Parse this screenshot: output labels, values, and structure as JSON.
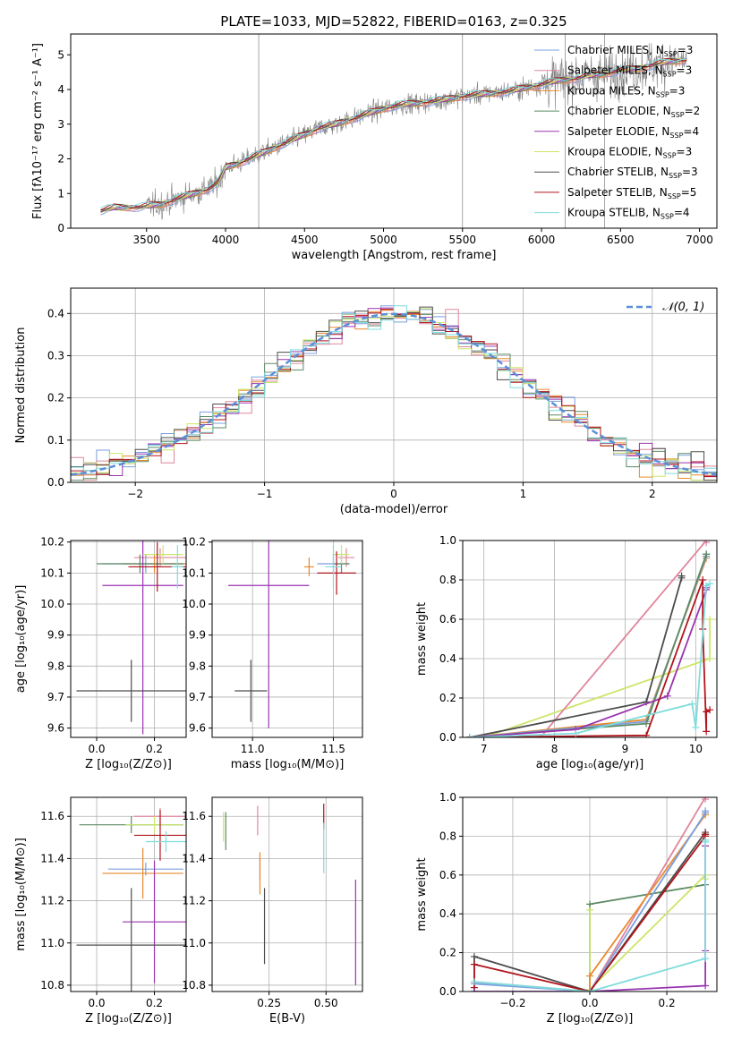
{
  "title": "PLATE=1033, MJD=52822, FIBERID=0163, z=0.325",
  "colors": {
    "Chabrier MILES": "#7b9fe0",
    "Salpeter MILES": "#e0869c",
    "Kroupa MILES": "#e88a2e",
    "Chabrier ELODIE": "#5e8a64",
    "Salpeter ELODIE": "#9a34b0",
    "Kroupa ELODIE": "#cce66a",
    "Chabrier STELIB": "#4d4d4d",
    "Salpeter STELIB": "#b0151c",
    "Kroupa STELIB": "#7fdcdc",
    "data": "#808080",
    "normal": "#5b8fd8"
  },
  "chart_data": [
    {
      "type": "line",
      "id": "spectrum",
      "xlabel": "wavelength [Angstrom, rest frame]",
      "ylabel": "Flux [fλ10⁻¹⁷ erg cm⁻² s⁻¹ A⁻¹]",
      "xlim": [
        3020,
        7110
      ],
      "ylim": [
        0,
        5.6
      ],
      "xticks": [
        3500,
        4000,
        4500,
        5000,
        5500,
        6000,
        6500,
        7000
      ],
      "yticks": [
        0,
        1,
        2,
        3,
        4,
        5
      ],
      "legend_position": "top-right",
      "continuum": {
        "x": [
          3210,
          3300,
          3450,
          3600,
          3700,
          3800,
          3900,
          3950,
          4000,
          4100,
          4200,
          4300,
          4400,
          4500,
          4600,
          4700,
          4800,
          4900,
          5000,
          5100,
          5200,
          5300,
          5400,
          5500,
          5600,
          5700,
          5800,
          5900,
          6000,
          6100,
          6200,
          6300,
          6400,
          6500,
          6600,
          6700,
          6800,
          6920
        ],
        "y": [
          0.5,
          0.6,
          0.6,
          0.7,
          0.85,
          1.0,
          1.15,
          1.3,
          1.75,
          1.9,
          2.1,
          2.3,
          2.5,
          2.7,
          2.9,
          3.0,
          3.15,
          3.3,
          3.45,
          3.55,
          3.6,
          3.65,
          3.72,
          3.8,
          3.85,
          3.9,
          3.95,
          4.05,
          4.15,
          4.25,
          4.3,
          4.4,
          4.45,
          4.55,
          4.6,
          4.7,
          4.8,
          4.85
        ]
      },
      "series": [
        {
          "name": "Chabrier MILES, N",
          "sub": "SSP",
          "suffix": "=3"
        },
        {
          "name": "Salpeter MILES, N",
          "sub": "SSP",
          "suffix": "=3"
        },
        {
          "name": "Kroupa MILES, N",
          "sub": "SSP",
          "suffix": "=3"
        },
        {
          "name": "Chabrier ELODIE, N",
          "sub": "SSP",
          "suffix": "=2"
        },
        {
          "name": "Salpeter ELODIE, N",
          "sub": "SSP",
          "suffix": "=4"
        },
        {
          "name": "Kroupa ELODIE, N",
          "sub": "SSP",
          "suffix": "=3"
        },
        {
          "name": "Chabrier STELIB, N",
          "sub": "SSP",
          "suffix": "=3"
        },
        {
          "name": "Salpeter STELIB, N",
          "sub": "SSP",
          "suffix": "=5"
        },
        {
          "name": "Kroupa STELIB, N",
          "sub": "SSP",
          "suffix": "=4"
        }
      ]
    },
    {
      "type": "line",
      "id": "residuals",
      "xlabel": "(data-model)/error",
      "ylabel": "Normed distribution",
      "xlim": [
        -2.5,
        2.5
      ],
      "ylim": [
        0,
        0.46
      ],
      "xticks": [
        -2,
        -1,
        0,
        1,
        2
      ],
      "yticks": [
        0.0,
        0.1,
        0.2,
        0.3,
        0.4
      ],
      "grid": true,
      "legend_position": "top-right",
      "normal_label": "𝒩(0, 1)",
      "bin_width": 0.1
    },
    {
      "type": "scatter",
      "id": "age_vs_Z",
      "xlabel": "Z [log₁₀(Z/Z⊙)]",
      "ylabel": "age  [log₁₀(age/yr)]",
      "xlim": [
        -0.09,
        0.31
      ],
      "ylim": [
        9.57,
        10.205
      ],
      "xticks": [
        0.0,
        0.2
      ],
      "yticks": [
        9.6,
        9.7,
        9.8,
        9.9,
        10.0,
        10.1,
        10.2
      ],
      "grid": true,
      "points": [
        {
          "series": "Chabrier MILES",
          "x": 0.17,
          "xerr": 0.15,
          "y": 10.13,
          "yerr": 0.03
        },
        {
          "series": "Salpeter MILES",
          "x": 0.22,
          "xerr": 0.09,
          "y": 10.15,
          "yerr": 0.03
        },
        {
          "series": "Kroupa MILES",
          "x": 0.2,
          "xerr": 0.11,
          "y": 10.13,
          "yerr": 0.03
        },
        {
          "series": "Chabrier ELODIE",
          "x": 0.15,
          "xerr": 0.15,
          "y": 10.13,
          "yerr": 0.03
        },
        {
          "series": "Salpeter ELODIE",
          "x": 0.16,
          "xerr": 0.14,
          "y": 10.06,
          "yerr": 0.48
        },
        {
          "series": "Kroupa ELODIE",
          "x": 0.23,
          "xerr": 0.07,
          "y": 10.16,
          "yerr": 0.03
        },
        {
          "series": "Chabrier STELIB",
          "x": 0.12,
          "xerr": 0.19,
          "y": 9.72,
          "yerr": 0.1
        },
        {
          "series": "Salpeter STELIB",
          "x": 0.21,
          "xerr": 0.1,
          "y": 10.12,
          "yerr": 0.08
        },
        {
          "series": "Kroupa STELIB",
          "x": 0.28,
          "xerr": 0.02,
          "y": 10.12,
          "yerr": 0.07
        }
      ]
    },
    {
      "type": "scatter",
      "id": "age_vs_mass",
      "xlabel": "mass [log₁₀(M/M⊙)]",
      "xlim": [
        10.75,
        11.68
      ],
      "ylim": [
        9.57,
        10.205
      ],
      "xticks": [
        11.0,
        11.5
      ],
      "yticks": [
        9.6,
        9.7,
        9.8,
        9.9,
        10.0,
        10.1,
        10.2
      ],
      "grid": true,
      "points": [
        {
          "series": "Chabrier MILES",
          "x": 11.5,
          "xerr": 0.1,
          "y": 10.13,
          "yerr": 0.03
        },
        {
          "series": "Salpeter MILES",
          "x": 11.58,
          "xerr": 0.05,
          "y": 10.15,
          "yerr": 0.03
        },
        {
          "series": "Kroupa MILES",
          "x": 11.35,
          "xerr": 0.03,
          "y": 10.12,
          "yerr": 0.03
        },
        {
          "series": "Chabrier ELODIE",
          "x": 11.55,
          "xerr": 0.05,
          "y": 10.13,
          "yerr": 0.03
        },
        {
          "series": "Salpeter ELODIE",
          "x": 11.1,
          "xerr": 0.25,
          "y": 10.06,
          "yerr": 0.46
        },
        {
          "series": "Kroupa ELODIE",
          "x": 11.55,
          "xerr": 0.05,
          "y": 10.16,
          "yerr": 0.03
        },
        {
          "series": "Chabrier STELIB",
          "x": 10.99,
          "xerr": 0.1,
          "y": 9.72,
          "yerr": 0.1
        },
        {
          "series": "Salpeter STELIB",
          "x": 11.52,
          "xerr": 0.12,
          "y": 10.1,
          "yerr": 0.07
        },
        {
          "series": "Kroupa STELIB",
          "x": 11.5,
          "xerr": 0.05,
          "y": 10.12,
          "yerr": 0.07
        }
      ]
    },
    {
      "type": "line",
      "id": "mass_weight_vs_age",
      "xlabel": "age  [log₁₀(age/yr)]",
      "ylabel": "mass weight",
      "xlim": [
        6.7,
        10.3
      ],
      "ylim": [
        0,
        1.0
      ],
      "xticks": [
        7,
        8,
        9,
        10
      ],
      "yticks": [
        0.0,
        0.2,
        0.4,
        0.6,
        0.8,
        1.0
      ],
      "grid": true,
      "series": [
        {
          "series": "Kroupa ELODIE",
          "x": [
            7.0,
            10.2,
            10.2
          ],
          "y": [
            0.0,
            0.4,
            0.6
          ]
        },
        {
          "series": "Salpeter MILES",
          "x": [
            7.8,
            10.15,
            10.15
          ],
          "y": [
            0.0,
            1.0,
            0.99
          ]
        },
        {
          "series": "Chabrier STELIB",
          "x": [
            6.8,
            9.3,
            9.8,
            9.8
          ],
          "y": [
            0.0,
            0.18,
            0.81,
            0.82
          ]
        },
        {
          "series": "Kroupa MILES",
          "x": [
            6.8,
            9.3,
            10.15,
            10.15
          ],
          "y": [
            0.0,
            0.09,
            0.91,
            0.92
          ]
        },
        {
          "series": "Chabrier MILES",
          "x": [
            6.8,
            9.3,
            10.15,
            10.15
          ],
          "y": [
            0.0,
            0.08,
            0.92,
            0.93
          ]
        },
        {
          "series": "Chabrier ELODIE",
          "x": [
            6.8,
            9.3,
            10.15,
            10.15
          ],
          "y": [
            0.0,
            0.07,
            0.93,
            0.93
          ]
        },
        {
          "series": "Salpeter ELODIE",
          "x": [
            6.8,
            8.3,
            9.6,
            10.15,
            10.15
          ],
          "y": [
            0.0,
            0.04,
            0.21,
            0.75,
            0.76
          ]
        },
        {
          "series": "Salpeter STELIB",
          "x": [
            6.8,
            9.3,
            10.1,
            10.1,
            10.15,
            10.15,
            10.2
          ],
          "y": [
            0.0,
            0.01,
            0.8,
            0.55,
            0.03,
            0.13,
            0.14
          ]
        },
        {
          "series": "Kroupa STELIB",
          "x": [
            6.8,
            8.3,
            9.95,
            10.0,
            10.15,
            10.2
          ],
          "y": [
            0.0,
            0.02,
            0.17,
            0.05,
            0.77,
            0.78
          ]
        }
      ]
    },
    {
      "type": "scatter",
      "id": "mass_vs_Z",
      "xlabel": "Z [log₁₀(Z/Z⊙)]",
      "ylabel": "mass [log₁₀(M/M⊙)]",
      "xlim": [
        -0.09,
        0.31
      ],
      "ylim": [
        10.77,
        11.69
      ],
      "xticks": [
        0.0,
        0.2
      ],
      "yticks": [
        10.8,
        11.0,
        11.2,
        11.4,
        11.6
      ],
      "grid": true,
      "points": [
        {
          "series": "Chabrier MILES",
          "x": 0.17,
          "xerr": 0.13,
          "y": 11.35,
          "yerr": 0.03
        },
        {
          "series": "Salpeter MILES",
          "x": 0.22,
          "xerr": 0.09,
          "y": 11.6,
          "yerr": 0.04
        },
        {
          "series": "Kroupa MILES",
          "x": 0.16,
          "xerr": 0.14,
          "y": 11.33,
          "yerr": 0.12
        },
        {
          "series": "Chabrier ELODIE",
          "x": 0.12,
          "xerr": 0.18,
          "y": 11.56,
          "yerr": 0.04
        },
        {
          "series": "Salpeter ELODIE",
          "x": 0.2,
          "xerr": 0.11,
          "y": 11.1,
          "yerr": 0.29
        },
        {
          "series": "Kroupa ELODIE",
          "x": 0.2,
          "xerr": 0.1,
          "y": 11.56,
          "yerr": 0.04
        },
        {
          "series": "Chabrier STELIB",
          "x": 0.12,
          "xerr": 0.19,
          "y": 10.99,
          "yerr": 0.27
        },
        {
          "series": "Salpeter STELIB",
          "x": 0.22,
          "xerr": 0.09,
          "y": 11.51,
          "yerr": 0.12
        },
        {
          "series": "Kroupa STELIB",
          "x": 0.24,
          "xerr": 0.07,
          "y": 11.48,
          "yerr": 0.05
        }
      ]
    },
    {
      "type": "scatter",
      "id": "mass_vs_ebv",
      "xlabel": "E(B-V)",
      "xlim": [
        0.0,
        0.66
      ],
      "ylim": [
        10.77,
        11.69
      ],
      "xticks": [
        0.25,
        0.5
      ],
      "yticks": [
        10.8,
        11.0,
        11.2,
        11.4,
        11.6
      ],
      "grid": true,
      "points": [
        {
          "series": "Chabrier MILES",
          "x": 0.21,
          "xerr": 0.0,
          "y": 11.35,
          "yerr": 0.05
        },
        {
          "series": "Salpeter MILES",
          "x": 0.2,
          "xerr": 0.0,
          "y": 11.58,
          "yerr": 0.07
        },
        {
          "series": "Kroupa MILES",
          "x": 0.21,
          "xerr": 0.0,
          "y": 11.33,
          "yerr": 0.1
        },
        {
          "series": "Chabrier ELODIE",
          "x": 0.06,
          "xerr": 0.0,
          "y": 11.53,
          "yerr": 0.09
        },
        {
          "series": "Salpeter ELODIE",
          "x": 0.63,
          "xerr": 0.0,
          "y": 11.05,
          "yerr": 0.25
        },
        {
          "series": "Kroupa ELODIE",
          "x": 0.05,
          "xerr": 0.0,
          "y": 11.55,
          "yerr": 0.07
        },
        {
          "series": "Chabrier STELIB",
          "x": 0.23,
          "xerr": 0.0,
          "y": 11.08,
          "yerr": 0.18
        },
        {
          "series": "Salpeter STELIB",
          "x": 0.49,
          "xerr": 0.0,
          "y": 11.6,
          "yerr": 0.06
        },
        {
          "series": "Kroupa STELIB",
          "x": 0.49,
          "xerr": 0.0,
          "y": 11.45,
          "yerr": 0.12
        }
      ]
    },
    {
      "type": "line",
      "id": "mass_weight_vs_Z",
      "xlabel": "Z [log₁₀(Z/Z⊙)]",
      "ylabel": "mass weight",
      "xlim": [
        -0.33,
        0.33
      ],
      "ylim": [
        0,
        1.0
      ],
      "xticks": [
        -0.2,
        0.0,
        0.2
      ],
      "yticks": [
        0.0,
        0.2,
        0.4,
        0.6,
        0.8,
        1.0
      ],
      "grid": true,
      "series": [
        {
          "series": "Chabrier ELODIE",
          "x": [
            0.0,
            0.0,
            0.3
          ],
          "y": [
            0.0,
            0.45,
            0.55
          ]
        },
        {
          "series": "Kroupa ELODIE",
          "x": [
            0.0,
            0.0,
            0.0,
            0.3,
            0.3
          ],
          "y": [
            0.0,
            0.42,
            0.01,
            0.6,
            0.58
          ]
        },
        {
          "series": "Chabrier STELIB",
          "x": [
            -0.3,
            -0.3,
            0.0,
            0.3,
            0.3
          ],
          "y": [
            0.0,
            0.18,
            0.0,
            0.82,
            0.81
          ]
        },
        {
          "series": "Salpeter MILES",
          "x": [
            -0.3,
            0.0,
            0.3,
            0.3
          ],
          "y": [
            0.05,
            0.0,
            1.0,
            0.99
          ]
        },
        {
          "series": "Kroupa MILES",
          "x": [
            0.0,
            0.0,
            0.3,
            0.3
          ],
          "y": [
            0.0,
            0.08,
            0.91,
            0.92
          ]
        },
        {
          "series": "Chabrier MILES",
          "x": [
            -0.3,
            0.0,
            0.3,
            0.3
          ],
          "y": [
            0.04,
            0.0,
            0.92,
            0.93
          ]
        },
        {
          "series": "Salpeter STELIB",
          "x": [
            -0.3,
            -0.3,
            0.0,
            0.3,
            0.3
          ],
          "y": [
            0.02,
            0.14,
            0.0,
            0.8,
            0.81
          ]
        },
        {
          "series": "Salpeter ELODIE",
          "x": [
            -0.3,
            0.0,
            0.3,
            0.3,
            0.3
          ],
          "y": [
            0.0,
            0.0,
            0.03,
            0.21,
            0.75
          ]
        },
        {
          "series": "Kroupa STELIB",
          "x": [
            -0.3,
            0.0,
            0.3,
            0.3,
            0.3
          ],
          "y": [
            0.05,
            0.0,
            0.17,
            0.77,
            0.78
          ]
        }
      ]
    }
  ]
}
